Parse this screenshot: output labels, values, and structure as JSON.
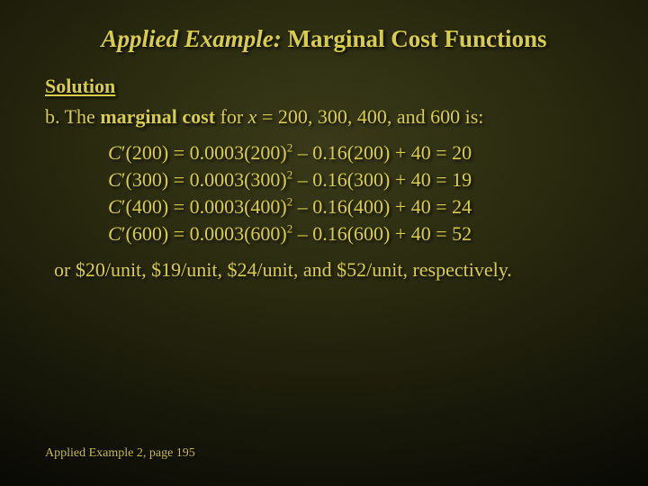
{
  "colors": {
    "background_center": "#3a3a1a",
    "background_edge": "#000000",
    "text": "#d4c946",
    "shadow": "rgba(0,0,0,0.8)"
  },
  "typography": {
    "family": "Times New Roman",
    "title_fontsize": 27,
    "body_fontsize": 22,
    "footer_fontsize": 14
  },
  "title": {
    "italic_part": "Applied Example:",
    "rest": "Marginal Cost Functions"
  },
  "solution_label": "Solution",
  "prompt": {
    "prefix": "b. The",
    "bold1": "marginal cost",
    "mid": "for",
    "italic_var": "x",
    "rest": "= 200, 300, 400, and 600 is:"
  },
  "equations": [
    {
      "lhs_var": "C",
      "lhs_arg": "200",
      "rhs": "0.0003(200)",
      "exp": "2",
      "tail": " – 0.16(200) + 40 = 20"
    },
    {
      "lhs_var": "C",
      "lhs_arg": "300",
      "rhs": "0.0003(300)",
      "exp": "2",
      "tail": " – 0.16(300) + 40 = 19"
    },
    {
      "lhs_var": "C",
      "lhs_arg": "400",
      "rhs": "0.0003(400)",
      "exp": "2",
      "tail": " – 0.16(400) + 40 = 24"
    },
    {
      "lhs_var": "C",
      "lhs_arg": "600",
      "rhs": "0.0003(600)",
      "exp": "2",
      "tail": " – 0.16(600) + 40 = 52"
    }
  ],
  "summary": "or $20/unit, $19/unit, $24/unit, and $52/unit, respectively.",
  "footer": "Applied Example 2, page 195"
}
